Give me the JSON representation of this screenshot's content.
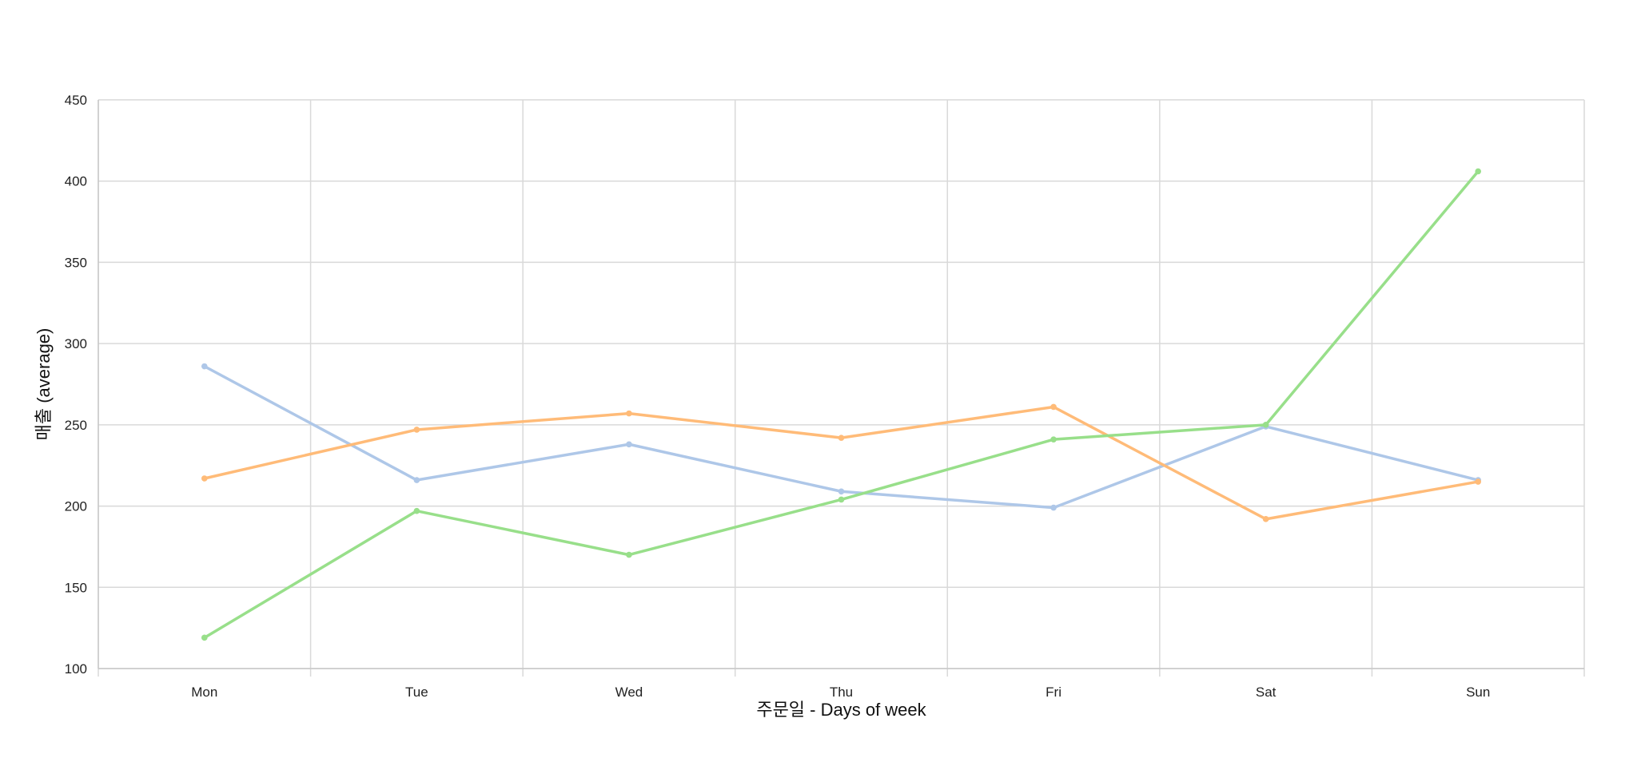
{
  "chart_data": {
    "type": "line",
    "title": "",
    "xlabel": "주문일 - Days of week",
    "ylabel": "매출 (average)",
    "categories": [
      "Mon",
      "Tue",
      "Wed",
      "Thu",
      "Fri",
      "Sat",
      "Sun"
    ],
    "ylim": [
      100,
      450
    ],
    "yticks": [
      100,
      150,
      200,
      250,
      300,
      350,
      400,
      450
    ],
    "grid": true,
    "series": [
      {
        "color": "#aec7e8",
        "values": [
          286,
          216,
          238,
          209,
          199,
          249,
          216
        ]
      },
      {
        "color": "#ffbb78",
        "values": [
          217,
          247,
          257,
          242,
          261,
          192,
          215
        ]
      },
      {
        "color": "#98df8a",
        "values": [
          119,
          197,
          170,
          204,
          241,
          250,
          406
        ]
      }
    ]
  }
}
